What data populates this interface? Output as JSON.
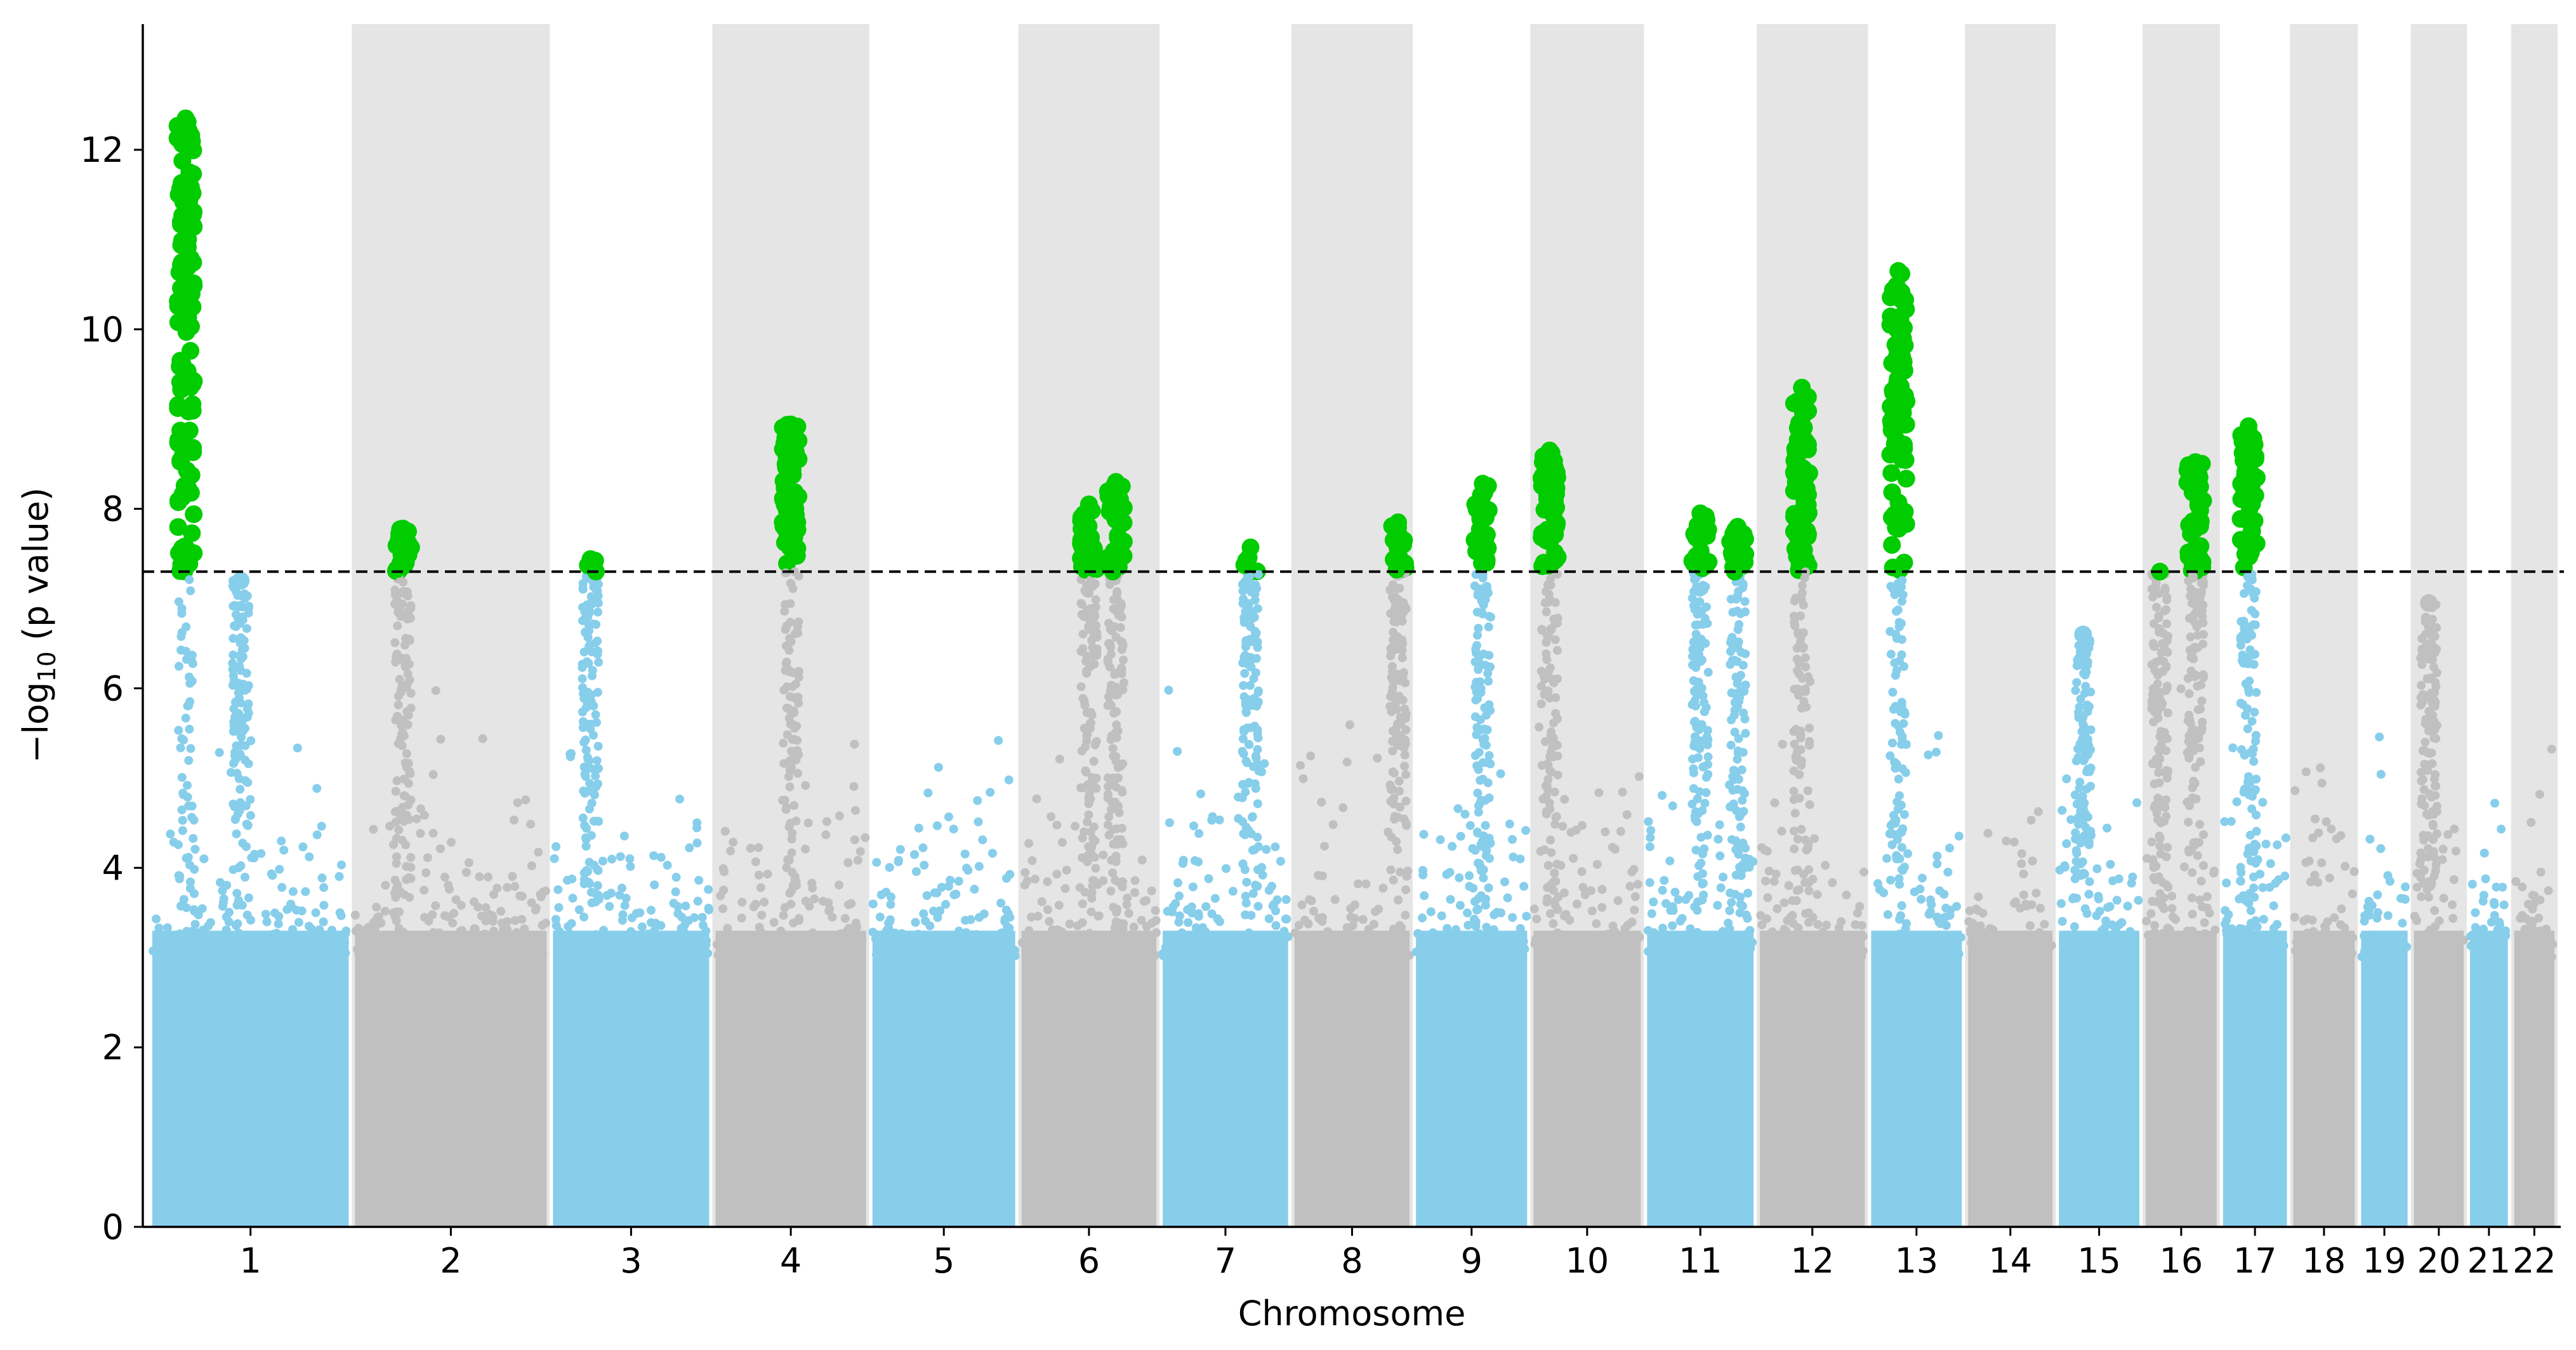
{
  "chart_data": {
    "type": "scatter",
    "subtype": "manhattan",
    "title": "",
    "xlabel": "Chromosome",
    "ylabel_main": "−log",
    "ylabel_sub": "10",
    "ylabel_rest": " (p value)",
    "ylim": [
      0,
      13.4
    ],
    "yticks": [
      0,
      2,
      4,
      6,
      8,
      10,
      12
    ],
    "threshold": 7.3,
    "grid": false,
    "colors": {
      "odd": "#87CEEB",
      "even": "#C0C0C0",
      "significant": "#00CC00",
      "band": "#E5E5E5",
      "threshold": "#000000"
    },
    "chromosomes": [
      {
        "label": "1",
        "size": 249,
        "shaded": false
      },
      {
        "label": "2",
        "size": 243,
        "shaded": true
      },
      {
        "label": "3",
        "size": 198,
        "shaded": false
      },
      {
        "label": "4",
        "size": 191,
        "shaded": true
      },
      {
        "label": "5",
        "size": 181,
        "shaded": false
      },
      {
        "label": "6",
        "size": 171,
        "shaded": true
      },
      {
        "label": "7",
        "size": 159,
        "shaded": false
      },
      {
        "label": "8",
        "size": 146,
        "shaded": true
      },
      {
        "label": "9",
        "size": 141,
        "shaded": false
      },
      {
        "label": "10",
        "size": 136,
        "shaded": true
      },
      {
        "label": "11",
        "size": 135,
        "shaded": false
      },
      {
        "label": "12",
        "size": 133,
        "shaded": true
      },
      {
        "label": "13",
        "size": 115,
        "shaded": false
      },
      {
        "label": "14",
        "size": 107,
        "shaded": true
      },
      {
        "label": "15",
        "size": 102,
        "shaded": false
      },
      {
        "label": "16",
        "size": 90,
        "shaded": true
      },
      {
        "label": "17",
        "size": 81,
        "shaded": false
      },
      {
        "label": "18",
        "size": 78,
        "shaded": true
      },
      {
        "label": "19",
        "size": 59,
        "shaded": false
      },
      {
        "label": "20",
        "size": 63,
        "shaded": true
      },
      {
        "label": "21",
        "size": 48,
        "shaded": false
      },
      {
        "label": "22",
        "size": 51,
        "shaded": true
      }
    ],
    "peaks": [
      {
        "chr": "1",
        "pos": 0.17,
        "max": 12.35
      },
      {
        "chr": "1",
        "pos": 0.45,
        "max": 7.2
      },
      {
        "chr": "2",
        "pos": 0.25,
        "max": 7.78
      },
      {
        "chr": "3",
        "pos": 0.24,
        "max": 7.44
      },
      {
        "chr": "4",
        "pos": 0.5,
        "max": 8.94
      },
      {
        "chr": "6",
        "pos": 0.5,
        "max": 8.05
      },
      {
        "chr": "6",
        "pos": 0.7,
        "max": 8.3
      },
      {
        "chr": "7",
        "pos": 0.7,
        "max": 7.57
      },
      {
        "chr": "8",
        "pos": 0.9,
        "max": 7.85
      },
      {
        "chr": "9",
        "pos": 0.6,
        "max": 8.28
      },
      {
        "chr": "10",
        "pos": 0.15,
        "max": 8.65
      },
      {
        "chr": "11",
        "pos": 0.5,
        "max": 7.95
      },
      {
        "chr": "11",
        "pos": 0.85,
        "max": 7.8
      },
      {
        "chr": "12",
        "pos": 0.4,
        "max": 9.35
      },
      {
        "chr": "13",
        "pos": 0.3,
        "max": 10.65
      },
      {
        "chr": "15",
        "pos": 0.3,
        "max": 6.6
      },
      {
        "chr": "16",
        "pos": 0.2,
        "max": 7.3
      },
      {
        "chr": "16",
        "pos": 0.7,
        "max": 8.52
      },
      {
        "chr": "17",
        "pos": 0.4,
        "max": 8.92
      },
      {
        "chr": "20",
        "pos": 0.3,
        "max": 6.95
      }
    ]
  }
}
